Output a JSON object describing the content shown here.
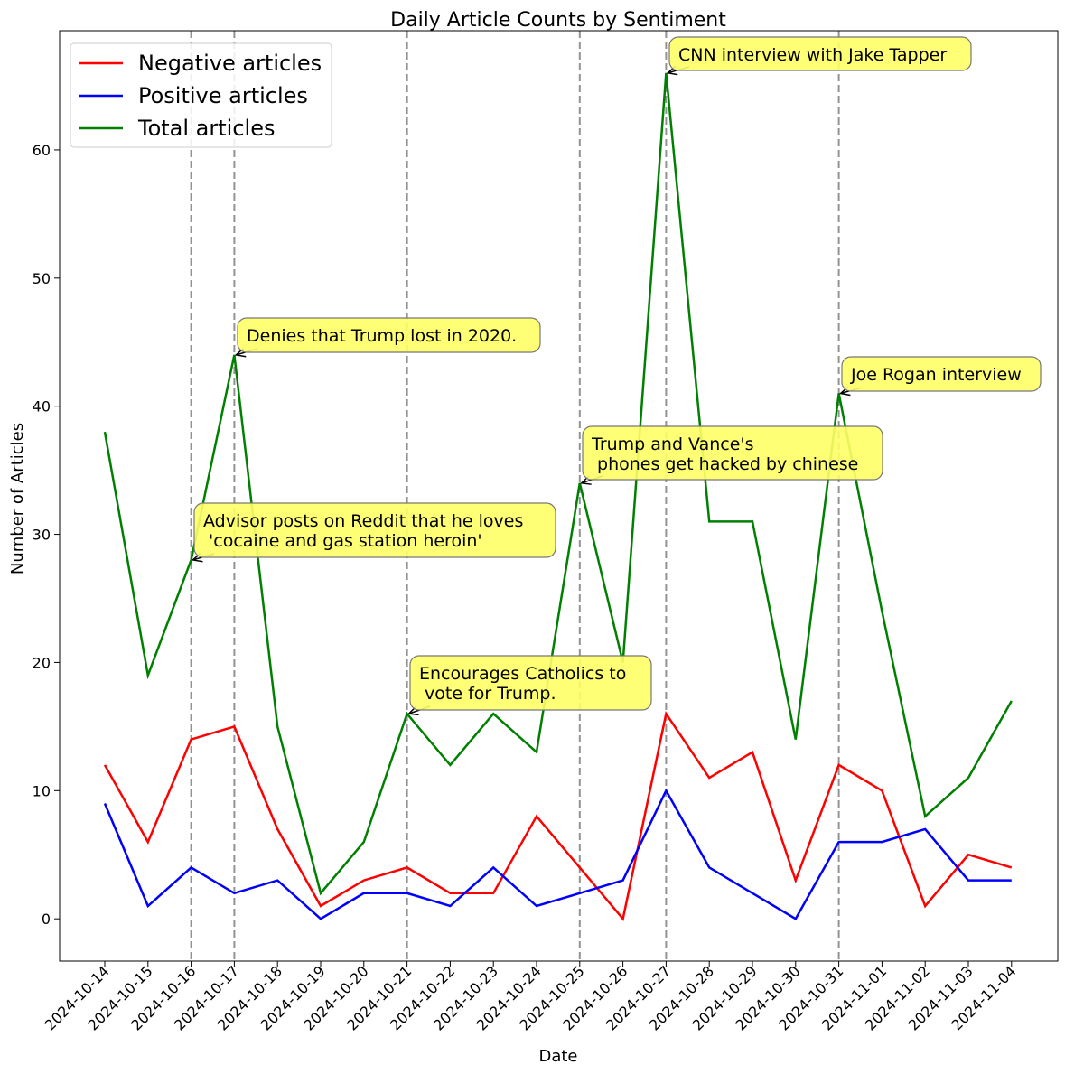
{
  "chart_data": {
    "type": "line",
    "title": "Daily Article Counts by Sentiment",
    "xlabel": "Date",
    "ylabel": "Number of Articles",
    "ylim": [
      -3.3,
      69.3
    ],
    "yticks": [
      0,
      10,
      20,
      30,
      40,
      50,
      60
    ],
    "categories": [
      "2024-10-14",
      "2024-10-15",
      "2024-10-16",
      "2024-10-17",
      "2024-10-18",
      "2024-10-19",
      "2024-10-20",
      "2024-10-21",
      "2024-10-22",
      "2024-10-23",
      "2024-10-24",
      "2024-10-25",
      "2024-10-26",
      "2024-10-27",
      "2024-10-28",
      "2024-10-29",
      "2024-10-30",
      "2024-10-31",
      "2024-11-01",
      "2024-11-02",
      "2024-11-03",
      "2024-11-04"
    ],
    "legend_position": "top-left",
    "grid": false,
    "series": [
      {
        "name": "Negative articles",
        "color": "#ff0000",
        "values": [
          12,
          6,
          14,
          15,
          7,
          1,
          3,
          4,
          2,
          2,
          8,
          4,
          0,
          16,
          11,
          13,
          3,
          12,
          10,
          1,
          5,
          4
        ]
      },
      {
        "name": "Positive articles",
        "color": "#0000ff",
        "values": [
          9,
          1,
          4,
          2,
          3,
          0,
          2,
          2,
          1,
          4,
          1,
          2,
          3,
          10,
          4,
          2,
          0,
          6,
          6,
          7,
          3,
          3
        ]
      },
      {
        "name": "Total articles",
        "color": "#008000",
        "values": [
          38,
          19,
          28,
          44,
          15,
          2,
          6,
          16,
          12,
          16,
          13,
          34,
          20,
          66,
          31,
          31,
          14,
          41,
          24,
          8,
          11,
          17
        ]
      }
    ],
    "vlines": [
      "2024-10-16",
      "2024-10-17",
      "2024-10-21",
      "2024-10-25",
      "2024-10-27",
      "2024-10-31"
    ],
    "annotations": [
      {
        "date": "2024-10-16",
        "value": 28,
        "lines": [
          "Advisor posts on Reddit that he loves",
          " 'cocaine and gas station heroin'"
        ]
      },
      {
        "date": "2024-10-17",
        "value": 44,
        "lines": [
          "Denies that Trump lost in 2020."
        ]
      },
      {
        "date": "2024-10-21",
        "value": 16,
        "lines": [
          "Encourages Catholics to",
          " vote for Trump."
        ]
      },
      {
        "date": "2024-10-25",
        "value": 34,
        "lines": [
          "Trump and Vance's",
          " phones get hacked by chinese"
        ]
      },
      {
        "date": "2024-10-27",
        "value": 66,
        "lines": [
          "CNN interview with Jake Tapper"
        ]
      },
      {
        "date": "2024-10-31",
        "value": 41,
        "lines": [
          "Joe Rogan interview"
        ]
      }
    ],
    "annotation_style": {
      "box_color": "#ffff66",
      "arrow_color": "#000000"
    }
  }
}
